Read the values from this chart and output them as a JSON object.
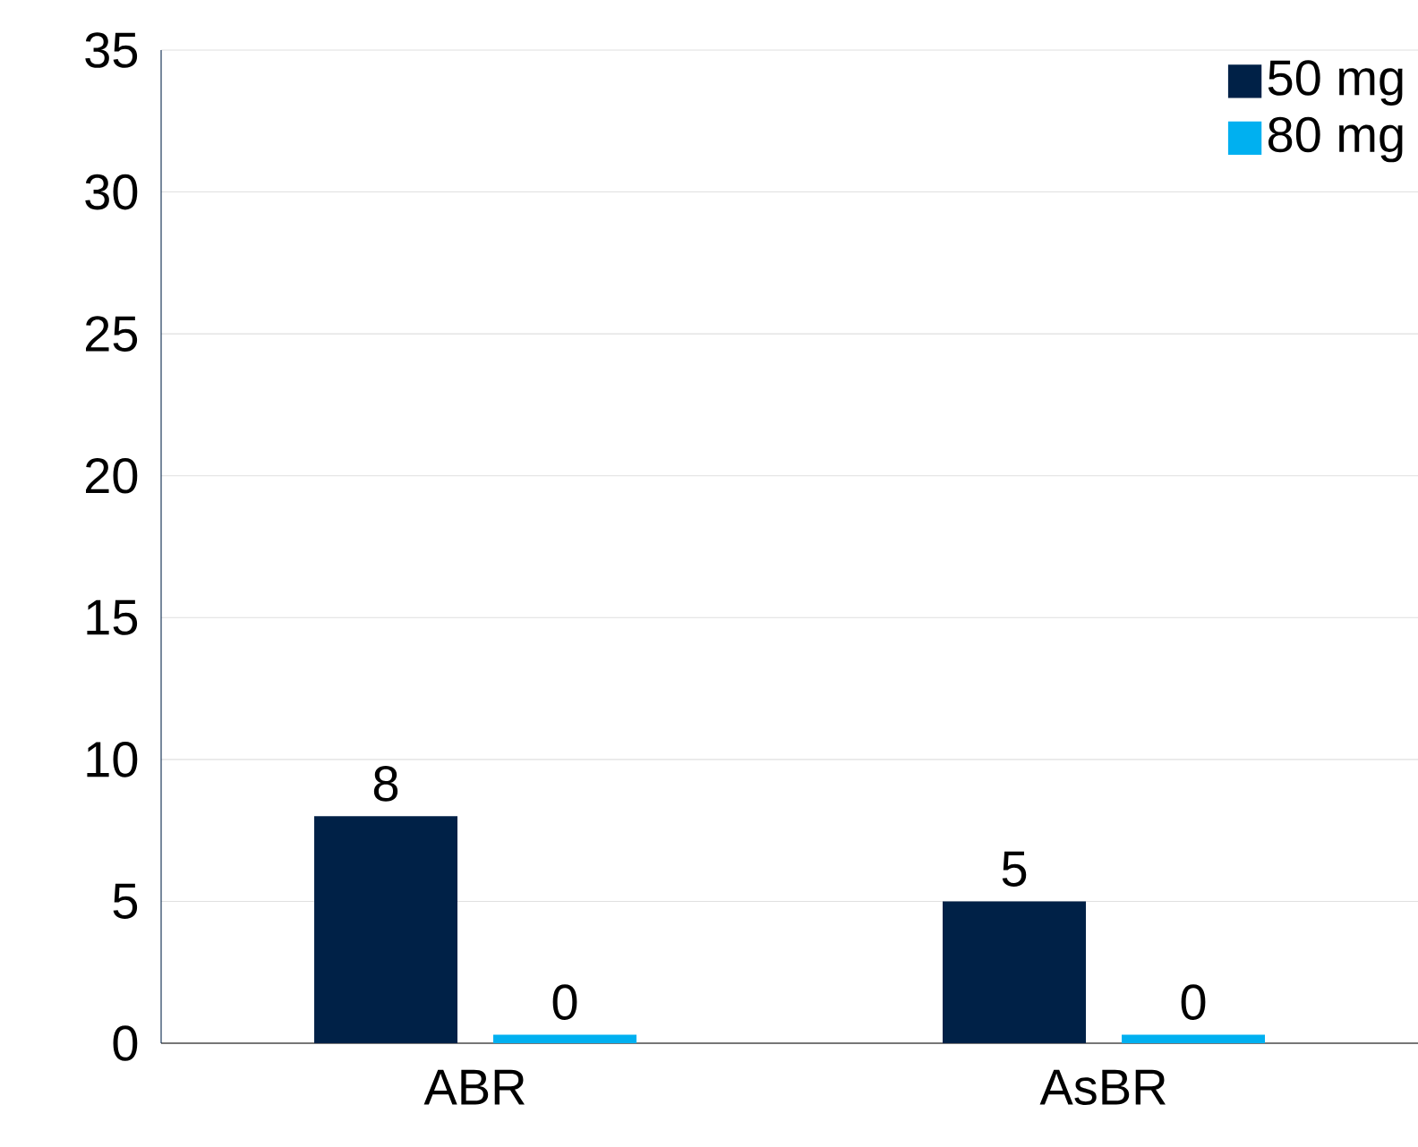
{
  "chart_data": {
    "type": "bar",
    "categories": [
      "ABR",
      "AsBR"
    ],
    "series": [
      {
        "name": "50 mg",
        "color": "#002147",
        "values": [
          8,
          5
        ],
        "value_labels": [
          "8",
          "5"
        ]
      },
      {
        "name": "80 mg",
        "color": "#00b0f0",
        "values": [
          0.3,
          0.3
        ],
        "value_labels": [
          "0",
          "0"
        ]
      }
    ],
    "ylim": [
      0,
      35
    ],
    "yticks": [
      0,
      5,
      10,
      15,
      20,
      25,
      30,
      35
    ],
    "grid": "y",
    "legend": "top right"
  }
}
